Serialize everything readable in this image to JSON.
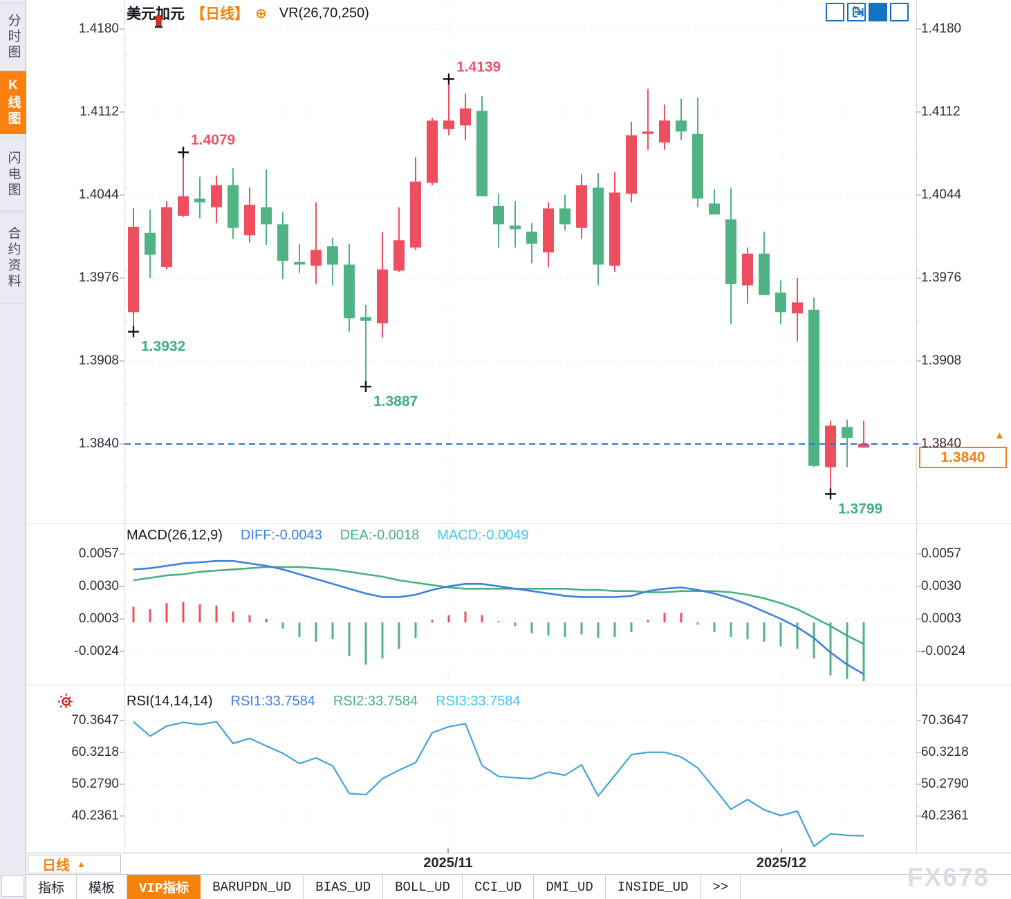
{
  "window": {
    "watermark": "FX678"
  },
  "sidebar": {
    "items": [
      {
        "label": "分时图",
        "active": false
      },
      {
        "label": "K线图",
        "active": true
      },
      {
        "label": "闪电图",
        "active": false
      },
      {
        "label": "合约资料",
        "active": false
      }
    ]
  },
  "header": {
    "symbol": "美元加元",
    "period": "【日线】",
    "plus_icon": "⊕",
    "indicator_label": "VR(26,70,250)"
  },
  "toolbar": {
    "icons": [
      "crosshair",
      "fit-axes",
      "auto-follow",
      "pan-right"
    ]
  },
  "price_panel": {
    "axis_ticks": [
      "1.4180",
      "1.4112",
      "1.4044",
      "1.3976",
      "1.3908",
      "1.3840"
    ],
    "current_price_tag": "1.3840",
    "tag_arrow": "▲",
    "annotations": [
      {
        "text": "1.3932",
        "index": 0,
        "kind": "low"
      },
      {
        "text": "1.4079",
        "index": 3,
        "kind": "high"
      },
      {
        "text": "1.3887",
        "index": 14,
        "kind": "low"
      },
      {
        "text": "1.4139",
        "index": 19,
        "kind": "high"
      },
      {
        "text": "1.3799",
        "index": 42,
        "kind": "low"
      }
    ]
  },
  "macd_panel": {
    "title": "MACD(26,12,9)",
    "readouts": [
      {
        "label": "DIFF:-0.0043",
        "color": "#3f7fe0"
      },
      {
        "label": "DEA:-0.0018",
        "color": "#46b07e"
      },
      {
        "label": "MACD:-0.0049",
        "color": "#3fc8f0"
      }
    ],
    "axis_ticks": [
      "0.0057",
      "0.0030",
      "0.0003",
      "-0.0024"
    ]
  },
  "rsi_panel": {
    "title": "RSI(14,14,14)",
    "readouts": [
      {
        "label": "RSI1:33.7584",
        "color": "#3f7fe0"
      },
      {
        "label": "RSI2:33.7584",
        "color": "#46b07e"
      },
      {
        "label": "RSI3:33.7584",
        "color": "#3fc8f0"
      }
    ],
    "axis_ticks": [
      "70.3647",
      "60.3218",
      "50.2790",
      "40.2361"
    ]
  },
  "x_axis": {
    "labels": [
      "2025/11",
      "2025/12"
    ],
    "period_button": {
      "label": "日线",
      "arrow": "▲"
    }
  },
  "bottom_tabs": [
    {
      "label": "指标",
      "active": false
    },
    {
      "label": "模板",
      "active": false
    },
    {
      "label": "VIP指标",
      "active": true
    },
    {
      "label": "BARUPDN_UD",
      "active": false
    },
    {
      "label": "BIAS_UD",
      "active": false
    },
    {
      "label": "BOLL_UD",
      "active": false
    },
    {
      "label": "CCI_UD",
      "active": false
    },
    {
      "label": "DMI_UD",
      "active": false
    },
    {
      "label": "INSIDE_UD",
      "active": false
    },
    {
      "label": ">>",
      "active": false
    }
  ],
  "colors": {
    "bull": "#ee4f5e",
    "bear": "#4fb383",
    "accent": "#f5820a",
    "diff_line": "#3f7fe0",
    "dea_line": "#46b07e",
    "rsi_line": "#41a3d9",
    "price_line": "#2277dd",
    "annotation_red": "#f2526a",
    "annotation_green": "#3fae7f",
    "grid": "#d6d6de",
    "marker": "#111111"
  },
  "chart_data": [
    {
      "type": "candlestick",
      "title": "美元加元 日线",
      "x_labels": [
        "2025/11",
        "2025/12"
      ],
      "y_ticks": [
        1.418,
        1.4112,
        1.4044,
        1.3976,
        1.3908,
        1.384
      ],
      "ylim": [
        1.378,
        1.4204
      ],
      "last_price": 1.384,
      "note": "red = bullish, green = bearish (CN convention); ohlc = [open,high,low,close]",
      "ohlc": [
        [
          1.3948,
          1.4033,
          1.3932,
          1.4018
        ],
        [
          1.4013,
          1.4032,
          1.3976,
          1.3995
        ],
        [
          1.3985,
          1.4039,
          1.3983,
          1.4034
        ],
        [
          1.4027,
          1.4079,
          1.4026,
          1.4043
        ],
        [
          1.4041,
          1.4059,
          1.4025,
          1.4038
        ],
        [
          1.4034,
          1.406,
          1.4021,
          1.4052
        ],
        [
          1.4052,
          1.4066,
          1.4008,
          1.4017
        ],
        [
          1.4011,
          1.405,
          1.4005,
          1.4036
        ],
        [
          1.4034,
          1.4065,
          1.4003,
          1.402
        ],
        [
          1.402,
          1.403,
          1.3975,
          1.399
        ],
        [
          1.3989,
          1.4004,
          1.398,
          1.3987
        ],
        [
          1.3986,
          1.4038,
          1.3971,
          1.3999
        ],
        [
          1.4002,
          1.4009,
          1.397,
          1.3987
        ],
        [
          1.3987,
          1.4004,
          1.3932,
          1.3943
        ],
        [
          1.3944,
          1.3954,
          1.3887,
          1.3941
        ],
        [
          1.3939,
          1.4014,
          1.3927,
          1.3983
        ],
        [
          1.3982,
          1.4034,
          1.3981,
          1.4007
        ],
        [
          1.4001,
          1.4075,
          1.3999,
          1.4055
        ],
        [
          1.4054,
          1.4107,
          1.4052,
          1.4105
        ],
        [
          1.4098,
          1.4139,
          1.4093,
          1.4105
        ],
        [
          1.4101,
          1.4127,
          1.4089,
          1.4115
        ],
        [
          1.4113,
          1.4125,
          1.4043,
          1.4043
        ],
        [
          1.4035,
          1.4045,
          1.4001,
          1.402
        ],
        [
          1.4019,
          1.4039,
          1.4001,
          1.4016
        ],
        [
          1.4014,
          1.4021,
          1.3988,
          1.4004
        ],
        [
          1.3997,
          1.4038,
          1.3985,
          1.4033
        ],
        [
          1.4033,
          1.4044,
          1.4015,
          1.402
        ],
        [
          1.4017,
          1.4061,
          1.4008,
          1.4052
        ],
        [
          1.405,
          1.4062,
          1.397,
          1.3987
        ],
        [
          1.3986,
          1.4063,
          1.3981,
          1.4046
        ],
        [
          1.4045,
          1.4104,
          1.4038,
          1.4093
        ],
        [
          1.4094,
          1.4131,
          1.4081,
          1.4096
        ],
        [
          1.4087,
          1.4118,
          1.4081,
          1.4105
        ],
        [
          1.4105,
          1.4123,
          1.4089,
          1.4096
        ],
        [
          1.4094,
          1.4124,
          1.4034,
          1.4041
        ],
        [
          1.4037,
          1.4049,
          1.4028,
          1.4028
        ],
        [
          1.4024,
          1.405,
          1.3938,
          1.3971
        ],
        [
          1.397,
          1.4001,
          1.3955,
          1.3996
        ],
        [
          1.3996,
          1.4014,
          1.3962,
          1.3962
        ],
        [
          1.3964,
          1.3974,
          1.3938,
          1.3948
        ],
        [
          1.3947,
          1.3976,
          1.3924,
          1.3956
        ],
        [
          1.395,
          1.396,
          1.3821,
          1.3822
        ],
        [
          1.3821,
          1.3859,
          1.3799,
          1.3855
        ],
        [
          1.3854,
          1.386,
          1.3821,
          1.3845
        ],
        [
          1.3837,
          1.3859,
          1.3837,
          1.384
        ]
      ]
    },
    {
      "type": "macd",
      "params": "26,12,9",
      "y_ticks": [
        0.0057,
        0.003,
        0.0003,
        -0.0024
      ],
      "last": {
        "diff": -0.0043,
        "dea": -0.0018,
        "macd": -0.0049
      },
      "diff": [
        0.0044,
        0.0045,
        0.0047,
        0.0049,
        0.005,
        0.0051,
        0.0051,
        0.0049,
        0.0047,
        0.0044,
        0.004,
        0.0036,
        0.0032,
        0.0028,
        0.0024,
        0.0021,
        0.0021,
        0.0023,
        0.0027,
        0.003,
        0.0032,
        0.0032,
        0.003,
        0.0028,
        0.0026,
        0.0024,
        0.0022,
        0.0021,
        0.0021,
        0.0021,
        0.0022,
        0.0026,
        0.0028,
        0.0029,
        0.0027,
        0.0024,
        0.002,
        0.0015,
        0.0009,
        0.0003,
        -0.0004,
        -0.0013,
        -0.0025,
        -0.0035,
        -0.0043
      ],
      "dea": [
        0.0035,
        0.0037,
        0.0039,
        0.004,
        0.0042,
        0.0043,
        0.0044,
        0.0045,
        0.0046,
        0.0046,
        0.0046,
        0.0045,
        0.0044,
        0.0042,
        0.004,
        0.0038,
        0.0035,
        0.0033,
        0.0031,
        0.0029,
        0.0028,
        0.0028,
        0.0028,
        0.0028,
        0.0028,
        0.0028,
        0.0028,
        0.0027,
        0.0027,
        0.0026,
        0.0026,
        0.0025,
        0.0025,
        0.0026,
        0.0026,
        0.0026,
        0.0025,
        0.0023,
        0.002,
        0.0016,
        0.0011,
        0.0004,
        -0.0003,
        -0.0011,
        -0.0018
      ],
      "hist": [
        0.0013,
        0.0011,
        0.0016,
        0.0017,
        0.0015,
        0.0014,
        0.0009,
        0.0006,
        0.0003,
        -0.0005,
        -0.0012,
        -0.0016,
        -0.0014,
        -0.0028,
        -0.0035,
        -0.003,
        -0.0022,
        -0.0013,
        0.0002,
        0.0006,
        0.0009,
        0.0006,
        0.0001,
        -0.0003,
        -0.0009,
        -0.0011,
        -0.0012,
        -0.001,
        -0.0013,
        -0.0012,
        -0.0008,
        0.0002,
        0.0008,
        0.0008,
        -0.0002,
        -0.0008,
        -0.0012,
        -0.0014,
        -0.0016,
        -0.002,
        -0.0022,
        -0.003,
        -0.0044,
        -0.0047,
        -0.0049
      ]
    },
    {
      "type": "line",
      "name": "RSI(14,14,14)",
      "y_ticks": [
        70.3647,
        60.3218,
        50.279,
        40.2361
      ],
      "last": {
        "rsi1": 33.7584,
        "rsi2": 33.7584,
        "rsi3": 33.7584
      },
      "values": [
        70.0,
        65.4,
        68.6,
        69.8,
        69.1,
        70.0,
        63.1,
        64.7,
        62.3,
        60.0,
        56.7,
        58.5,
        56.0,
        47.2,
        46.8,
        51.9,
        54.6,
        57.0,
        66.5,
        68.4,
        69.4,
        56.1,
        52.6,
        52.2,
        51.9,
        54.0,
        53.0,
        56.3,
        46.4,
        52.9,
        59.5,
        60.3,
        60.3,
        58.8,
        55.3,
        48.8,
        42.2,
        45.3,
        42.0,
        40.2,
        41.6,
        30.4,
        34.4,
        33.9,
        33.7584
      ]
    }
  ]
}
